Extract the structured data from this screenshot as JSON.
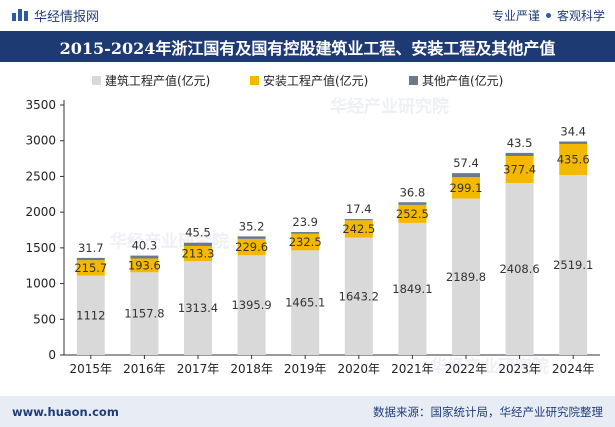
{
  "header": {
    "brand": "华经情报网",
    "slogan_left": "专业严谨",
    "slogan_right": "客观科学"
  },
  "footer": {
    "url": "www.huaon.com",
    "source": "数据来源：国家统计局，华经产业研究院整理"
  },
  "watermark": "华经产业研究院",
  "colors": {
    "construction": "#d9d9d9",
    "installation": "#f5b800",
    "other": "#6a7a8c",
    "title_bg": "#1d3a73"
  },
  "chart_data": {
    "type": "bar",
    "stacked": true,
    "title": "2015-2024年浙江国有及国有控股建筑业工程、安装工程及其他产值",
    "xlabel": "",
    "ylabel": "",
    "ylim": [
      0,
      3500
    ],
    "yticks": [
      0,
      500,
      1000,
      1500,
      2000,
      2500,
      3000,
      3500
    ],
    "categories": [
      "2015年",
      "2016年",
      "2017年",
      "2018年",
      "2019年",
      "2020年",
      "2021年",
      "2022年",
      "2023年",
      "2024年"
    ],
    "series": [
      {
        "name": "建筑工程产值(亿元)",
        "values": [
          1112,
          1157.8,
          1313.4,
          1395.9,
          1465.1,
          1643.2,
          1849.1,
          2189.8,
          2408.6,
          2519.1
        ]
      },
      {
        "name": "安装工程产值(亿元)",
        "values": [
          215.7,
          193.6,
          213.3,
          229.6,
          232.5,
          242.5,
          252.5,
          299.1,
          377.4,
          435.6
        ]
      },
      {
        "name": "其他产值(亿元)",
        "values": [
          31.7,
          40.3,
          45.5,
          35.2,
          23.9,
          17.4,
          36.8,
          57.4,
          43.5,
          34.4
        ]
      }
    ],
    "legend_position": "top-left"
  }
}
